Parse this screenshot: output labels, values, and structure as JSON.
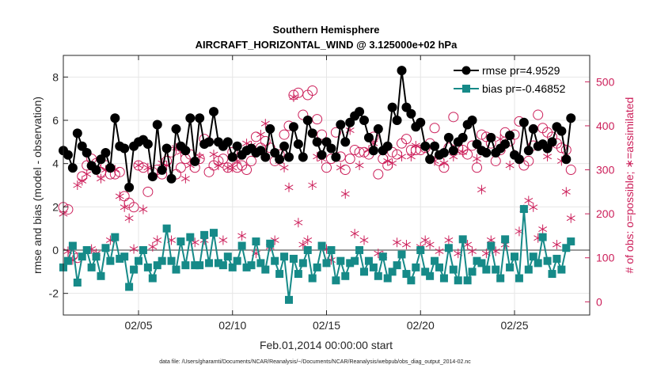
{
  "chart_data": {
    "type": "line",
    "title": "Southern Hemisphere",
    "subtitle": "AIRCRAFT_HORIZONTAL_WIND @ 3.125000e+02 hPa",
    "xlabel": "Feb.01,2014 00:00:00 start",
    "ylabel_left": "rmse and bias (model - observation)",
    "ylabel_right": "# of obs: o=possible; ∗=assimilated",
    "footnote": "data file: /Users/gharamti/Documents/NCAR/Reanalysis/~/Documents/NCAR/Reanalysis/webpub/obs_diag_output_2014-02.nc",
    "xlim": [
      1,
      29
    ],
    "ylim_left": [
      -3,
      9
    ],
    "ylim_right": [
      -30,
      560
    ],
    "x_ticks": [
      5,
      10,
      15,
      20,
      25
    ],
    "x_tick_labels": [
      "02/05",
      "02/10",
      "02/15",
      "02/20",
      "02/25"
    ],
    "y_ticks_left": [
      -2,
      0,
      2,
      4,
      6,
      8
    ],
    "y_tick_labels_left": [
      "-2",
      "0",
      "2",
      "4",
      "6",
      "8"
    ],
    "y_ticks_right": [
      0,
      100,
      200,
      300,
      400,
      500
    ],
    "y_tick_labels_right": [
      "0",
      "100",
      "200",
      "300",
      "400",
      "500"
    ],
    "colors": {
      "rmse": "#000000",
      "bias": "#168a88",
      "obs": "#cc1f5a",
      "zero": "#9a9a9a"
    },
    "legend": [
      {
        "name": "rmse pr=4.9529",
        "color": "#000000",
        "marker": "circle"
      },
      {
        "name": "bias pr=-0.46852",
        "color": "#168a88",
        "marker": "square"
      }
    ],
    "series": [
      {
        "name": "rmse",
        "x_start": 1.0,
        "x_step": 0.25,
        "values": [
          4.6,
          4.4,
          3.8,
          5.4,
          4.8,
          4.5,
          3.9,
          3.7,
          4.2,
          4.5,
          3.8,
          6.1,
          4.8,
          4.7,
          2.9,
          4.8,
          5.0,
          5.1,
          4.9,
          3.4,
          5.8,
          3.7,
          4.7,
          3.3,
          5.6,
          4.8,
          4.6,
          6.1,
          4.1,
          6.1,
          4.9,
          5.0,
          6.4,
          5.0,
          4.8,
          5.0,
          4.3,
          4.8,
          4.4,
          4.6,
          4.7,
          4.5,
          4.6,
          4.3,
          5.6,
          4.5,
          4.2,
          4.8,
          4.3,
          5.7,
          4.9,
          4.3,
          6.0,
          5.4,
          5.0,
          4.4,
          5.0,
          4.7,
          4.3,
          5.8,
          5.0,
          5.9,
          6.2,
          6.4,
          6.0,
          5.2,
          4.6,
          5.6,
          4.6,
          4.8,
          6.6,
          6.0,
          8.3,
          6.6,
          6.3,
          5.7,
          5.9,
          4.8,
          4.2,
          4.8,
          4.4,
          4.5,
          5.2,
          4.6,
          5.0,
          5.2,
          5.8,
          6.0,
          4.9,
          4.6,
          4.5,
          5.2,
          4.5,
          4.7,
          4.9,
          5.3,
          4.4,
          4.2,
          5.9,
          4.6,
          5.6,
          4.8,
          4.9,
          4.7,
          5.0,
          5.7,
          5.5,
          4.2,
          6.1
        ]
      },
      {
        "name": "bias",
        "x_start": 1.0,
        "x_step": 0.25,
        "values": [
          -0.8,
          -0.5,
          0.2,
          -1.5,
          -0.3,
          0.0,
          -0.8,
          -0.3,
          -1.2,
          0.1,
          -0.5,
          0.6,
          -0.4,
          -0.3,
          -1.7,
          -0.9,
          -0.5,
          0.0,
          -0.8,
          -1.3,
          -0.7,
          -0.5,
          1.0,
          -0.5,
          -0.9,
          0.4,
          -0.7,
          0.6,
          -0.7,
          -0.7,
          0.7,
          -0.6,
          0.8,
          -0.6,
          -0.7,
          -0.3,
          -0.8,
          -0.5,
          0.2,
          -0.8,
          -0.7,
          0.4,
          -0.6,
          -0.9,
          0.3,
          -0.5,
          -1.1,
          -0.3,
          -2.3,
          -0.4,
          -1.1,
          -0.6,
          0.0,
          -1.3,
          -0.8,
          0.2,
          -0.6,
          0.0,
          -1.4,
          -0.5,
          -1.2,
          -0.6,
          -0.5,
          0.0,
          -1.0,
          -0.5,
          -0.8,
          -1.2,
          -0.3,
          -1.3,
          -1.0,
          -0.7,
          -0.2,
          -1.1,
          -1.4,
          -0.8,
          0.0,
          -1.0,
          -1.2,
          -0.5,
          -0.8,
          -1.3,
          0.1,
          -0.9,
          -1.4,
          0.5,
          -1.4,
          -1.0,
          -0.5,
          -0.6,
          -0.9,
          0.2,
          -0.9,
          -1.3,
          0.5,
          -0.8,
          -0.3,
          -1.3,
          1.9,
          -0.9,
          -0.3,
          -0.6,
          0.6,
          -0.5,
          -1.1,
          -0.4,
          -0.9,
          0.1,
          0.4
        ]
      },
      {
        "name": "possible",
        "x_start": 1.0,
        "x_step": 0.25,
        "values": [
          215,
          210,
          105,
          100,
          285,
          310,
          325,
          315,
          295,
          310,
          290,
          290,
          295,
          240,
          225,
          215,
          310,
          305,
          250,
          295,
          300,
          290,
          320,
          340,
          290,
          305,
          325,
          335,
          305,
          325,
          370,
          295,
          310,
          320,
          325,
          305,
          340,
          305,
          310,
          300,
          320,
          375,
          350,
          365,
          350,
          320,
          335,
          380,
          400,
          470,
          475,
          425,
          470,
          480,
          415,
          380,
          305,
          325,
          385,
          330,
          300,
          325,
          345,
          340,
          340,
          335,
          375,
          290,
          325,
          310,
          340,
          335,
          360,
          370,
          345,
          345,
          345,
          350,
          360,
          395,
          320,
          305,
          350,
          420,
          350,
          345,
          335,
          355,
          305,
          380,
          375,
          360,
          320,
          345,
          385,
          365,
          380,
          410,
          310,
          320,
          355,
          425,
          395,
          385,
          375,
          360,
          350,
          345,
          300
        ]
      },
      {
        "name": "assimilated",
        "x_start": 1.0,
        "x_step": 0.25,
        "values": [
          200,
          115,
          95,
          265,
          275,
          290,
          120,
          110,
          280,
          300,
          140,
          300,
          240,
          215,
          190,
          120,
          310,
          210,
          305,
          125,
          140,
          315,
          310,
          140,
          350,
          340,
          280,
          310,
          135,
          330,
          140,
          365,
          335,
          310,
          140,
          305,
          305,
          320,
          150,
          360,
          355,
          110,
          380,
          405,
          125,
          140,
          320,
          305,
          260,
          465,
          180,
          130,
          140,
          265,
          330,
          325,
          120,
          95,
          330,
          305,
          245,
          390,
          155,
          310,
          140,
          345,
          360,
          110,
          105,
          320,
          315,
          135,
          330,
          130,
          330,
          355,
          125,
          140,
          130,
          320,
          115,
          315,
          140,
          330,
          110,
          340,
          130,
          115,
          325,
          255,
          110,
          140,
          115,
          370,
          130,
          310,
          335,
          160,
          210,
          230,
          215,
          145,
          165,
          330,
          360,
          130,
          320,
          250,
          190
        ]
      }
    ]
  }
}
